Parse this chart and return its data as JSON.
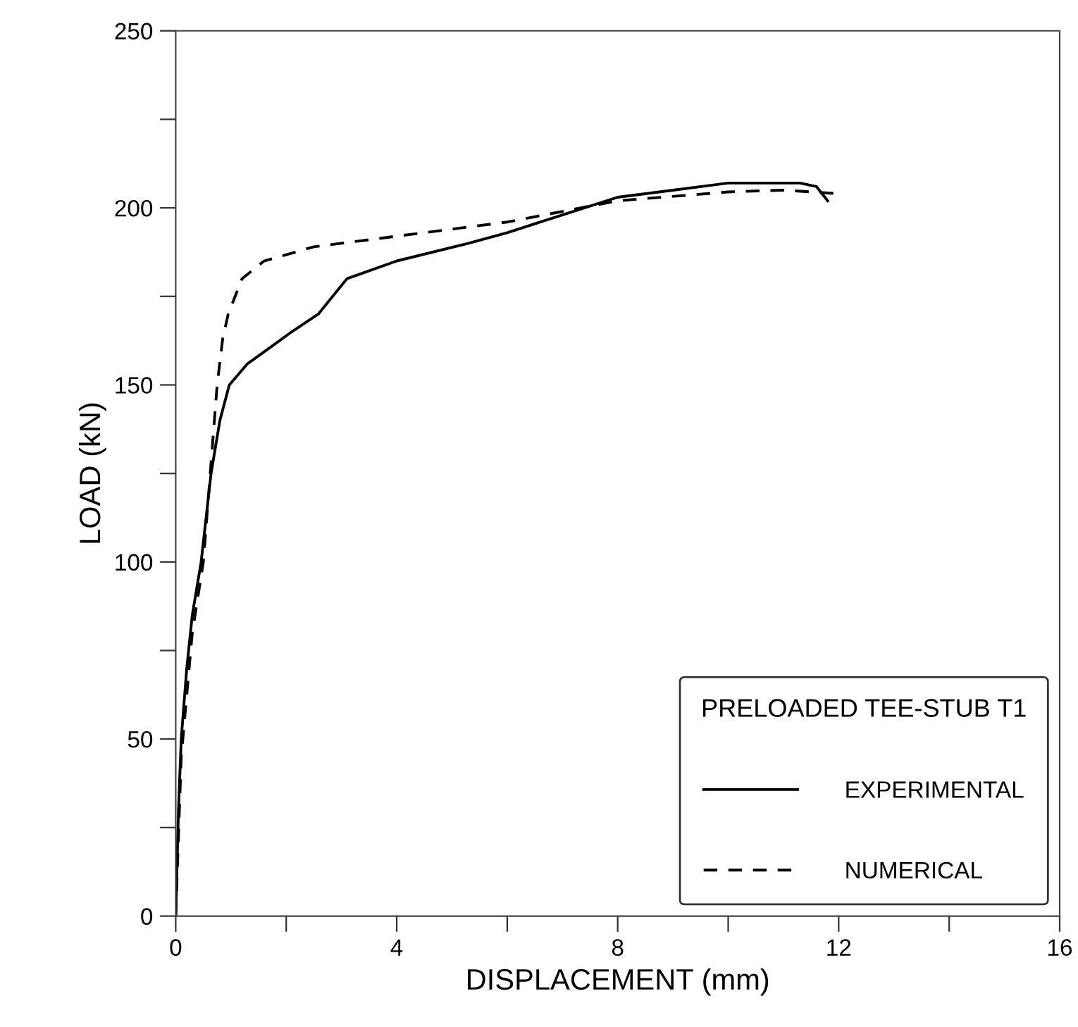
{
  "chart_data": {
    "type": "line",
    "xlabel": "DISPLACEMENT (mm)",
    "ylabel": "LOAD (kN)",
    "legend_title": "PRELOADED TEE-STUB T1",
    "legend": "bottom right",
    "grid": false,
    "xlim": [
      0,
      16
    ],
    "ylim": [
      0,
      250
    ],
    "xticks": [
      0,
      {
        "value": 2,
        "label": null
      },
      4,
      {
        "value": 6,
        "label": null
      },
      8,
      {
        "value": 10,
        "label": null
      },
      12,
      {
        "value": 14,
        "label": null
      },
      16
    ],
    "yticks": [
      0,
      {
        "value": 25,
        "label": null
      },
      50,
      {
        "value": 75,
        "label": null
      },
      100,
      {
        "value": 125,
        "label": null
      },
      150,
      {
        "value": 175,
        "label": null
      },
      200,
      {
        "value": 225,
        "label": null
      },
      250
    ],
    "series": [
      {
        "name": "EXPERIMENTAL",
        "color": "#000000",
        "line_style": "solid",
        "x": [
          0,
          0.05,
          0.1,
          0.2,
          0.3,
          0.46,
          0.64,
          0.8,
          0.97,
          1.3,
          1.66,
          2.1,
          2.58,
          3.1,
          4,
          5.3,
          6,
          7,
          8,
          9,
          10,
          10.8,
          11.3,
          11.6,
          11.8
        ],
        "values": [
          0,
          30,
          50,
          70,
          85,
          100,
          125,
          140,
          150,
          156,
          160,
          165,
          170,
          180,
          185,
          190,
          193,
          198,
          203,
          205,
          207,
          207,
          207,
          206,
          202
        ]
      },
      {
        "name": "NUMERICAL",
        "color": "#000000",
        "line_style": "dashed",
        "x": [
          0,
          0.1,
          0.3,
          0.5,
          0.65,
          0.75,
          0.85,
          0.95,
          1.2,
          1.6,
          2.5,
          4,
          6,
          8,
          10,
          11,
          12
        ],
        "values": [
          0,
          45,
          80,
          100,
          130,
          150,
          163,
          170,
          180,
          185,
          189,
          192,
          196,
          202,
          204.5,
          205,
          204
        ]
      }
    ]
  }
}
